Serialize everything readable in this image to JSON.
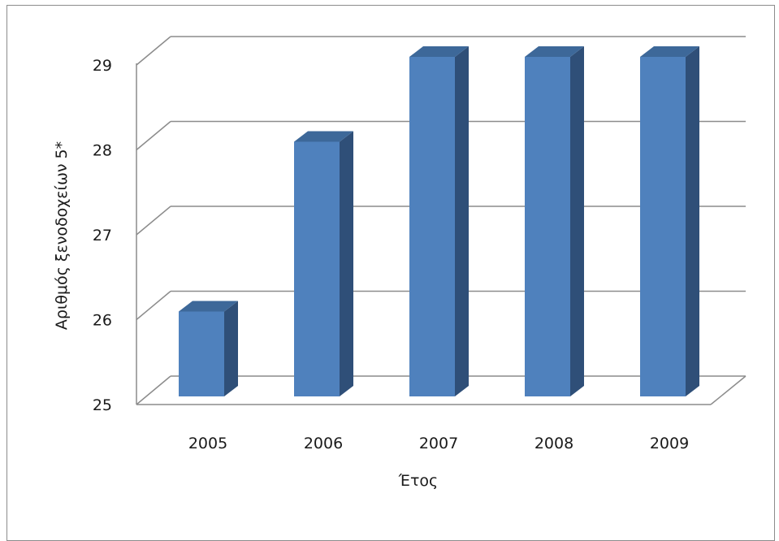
{
  "chart_data": {
    "type": "bar",
    "title": "",
    "xlabel": "Έτος",
    "ylabel": "Αριθμός ξενοδοχείων 5*",
    "categories": [
      "2005",
      "2006",
      "2007",
      "2008",
      "2009"
    ],
    "values": [
      26,
      28,
      29,
      29,
      29
    ],
    "ylim": [
      25,
      29
    ],
    "yticks": [
      "25",
      "26",
      "27",
      "28",
      "29"
    ],
    "grid": true,
    "legend": "none",
    "style": "3d-column",
    "colors": {
      "bar_front": "#4f81bd",
      "bar_top": "#3d6899",
      "bar_side": "#2f4f78",
      "grid": "#8c8c8c"
    }
  }
}
